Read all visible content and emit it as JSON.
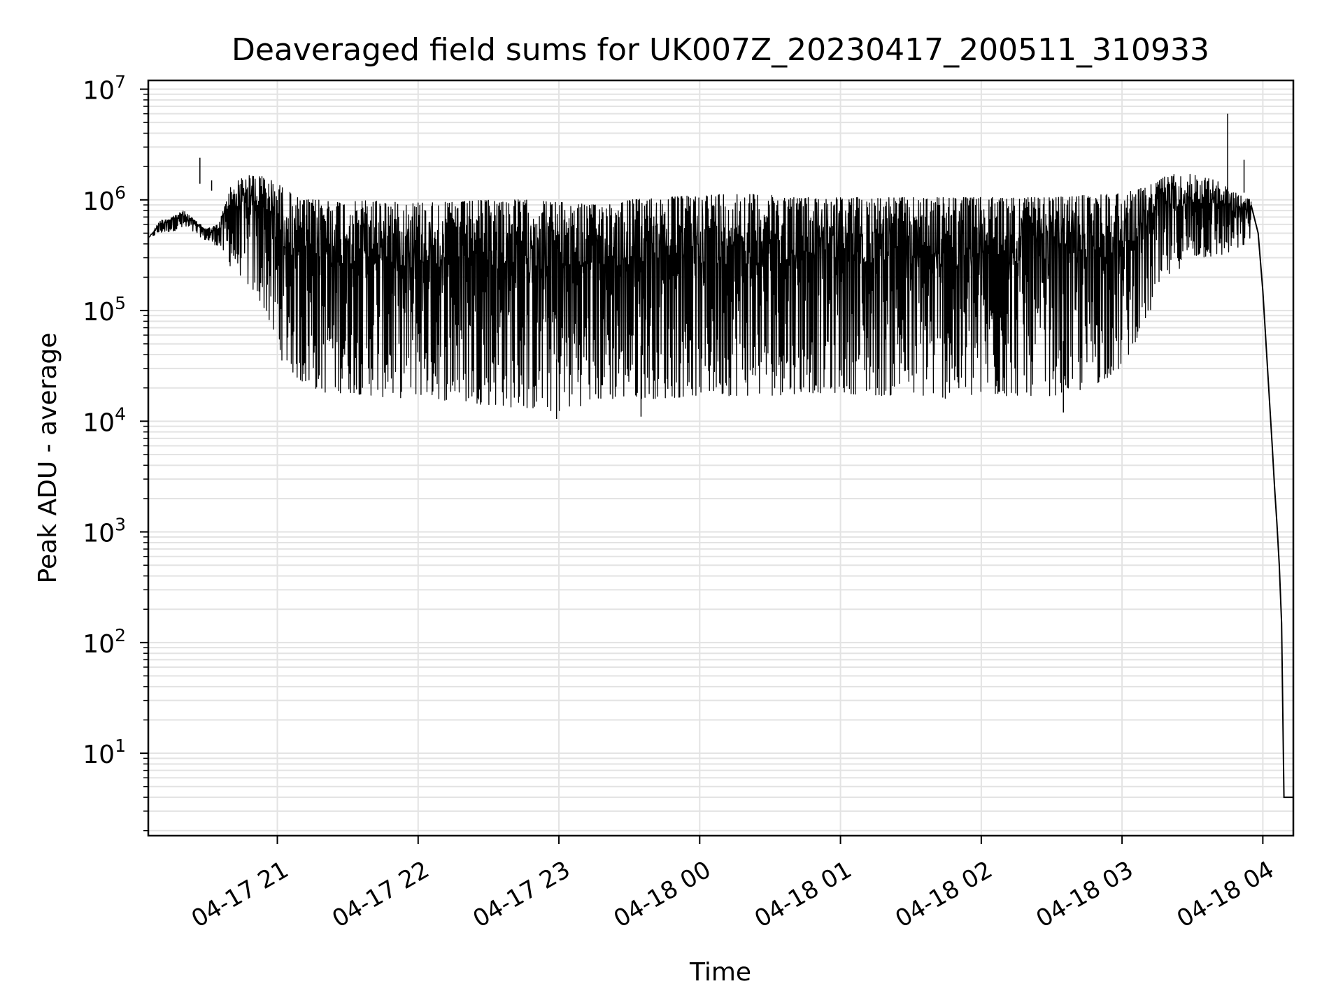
{
  "chart_data": {
    "type": "line",
    "title": "Deaveraged field sums for UK007Z_20230417_200511_310933",
    "xlabel": "Time",
    "ylabel": "Peak ADU - average",
    "yscale": "log",
    "grid": "on",
    "legend": "none",
    "line_color": "#000000",
    "grid_color": "#e3e3e3",
    "xlim": [
      "2023-04-17 20:05",
      "2023-04-18 04:13"
    ],
    "ylim": [
      1.8,
      12000000
    ],
    "x_tick_labels": [
      "04-17 21",
      "04-17 22",
      "04-17 23",
      "04-18 00",
      "04-18 01",
      "04-18 02",
      "04-18 03",
      "04-18 04"
    ],
    "y_tick_labels": [
      {
        "base": "10",
        "exp": "1",
        "value": 10
      },
      {
        "base": "10",
        "exp": "2",
        "value": 100
      },
      {
        "base": "10",
        "exp": "3",
        "value": 1000
      },
      {
        "base": "10",
        "exp": "4",
        "value": 10000
      },
      {
        "base": "10",
        "exp": "5",
        "value": 100000
      },
      {
        "base": "10",
        "exp": "6",
        "value": 1000000
      },
      {
        "base": "10",
        "exp": "7",
        "value": 10000000
      }
    ],
    "series": [
      {
        "envelope": {
          "x": [
            "2023-04-17 20:05",
            "2023-04-17 20:10",
            "2023-04-17 20:15",
            "2023-04-17 20:20",
            "2023-04-17 20:25",
            "2023-04-17 20:30",
            "2023-04-17 20:35",
            "2023-04-17 20:40",
            "2023-04-17 20:45",
            "2023-04-17 20:50",
            "2023-04-17 20:55",
            "2023-04-17 21:00",
            "2023-04-17 21:10",
            "2023-04-17 21:20",
            "2023-04-17 21:30",
            "2023-04-17 21:40",
            "2023-04-17 21:50",
            "2023-04-17 22:00",
            "2023-04-17 22:15",
            "2023-04-17 22:30",
            "2023-04-17 22:45",
            "2023-04-17 23:00",
            "2023-04-17 23:15",
            "2023-04-17 23:30",
            "2023-04-17 23:45",
            "2023-04-18 00:00",
            "2023-04-18 00:15",
            "2023-04-18 00:30",
            "2023-04-18 00:45",
            "2023-04-18 01:00",
            "2023-04-18 01:15",
            "2023-04-18 01:30",
            "2023-04-18 01:45",
            "2023-04-18 02:00",
            "2023-04-18 02:15",
            "2023-04-18 02:30",
            "2023-04-18 02:45",
            "2023-04-18 03:00",
            "2023-04-18 03:10",
            "2023-04-18 03:20",
            "2023-04-18 03:30",
            "2023-04-18 03:40",
            "2023-04-18 03:50",
            "2023-04-18 03:55"
          ],
          "high": [
            450000,
            650000,
            700000,
            800000,
            650000,
            550000,
            600000,
            1300000,
            1600000,
            1700000,
            1600000,
            1400000,
            1000000,
            1000000,
            950000,
            1000000,
            950000,
            950000,
            950000,
            1000000,
            1000000,
            950000,
            900000,
            1000000,
            1050000,
            1100000,
            1150000,
            1100000,
            1050000,
            1050000,
            1050000,
            1050000,
            1050000,
            1050000,
            1050000,
            1050000,
            1100000,
            1150000,
            1300000,
            1700000,
            1700000,
            1500000,
            1100000,
            1000000
          ],
          "low": [
            450000,
            500000,
            520000,
            550000,
            500000,
            420000,
            380000,
            250000,
            200000,
            140000,
            100000,
            40000,
            22000,
            18000,
            18000,
            17000,
            16000,
            17000,
            15000,
            14000,
            13000,
            12000,
            15000,
            16000,
            16000,
            17000,
            17000,
            17000,
            18000,
            18000,
            17000,
            17000,
            16000,
            16000,
            17000,
            17000,
            19000,
            30000,
            80000,
            200000,
            300000,
            300000,
            350000,
            450000
          ]
        },
        "spikes": [
          {
            "t": "2023-04-17 20:27",
            "y": 2400000
          },
          {
            "t": "2023-04-17 20:32",
            "y": 1500000
          },
          {
            "t": "2023-04-17 23:35",
            "y": 11000
          },
          {
            "t": "2023-04-17 22:59",
            "y": 10500
          },
          {
            "t": "2023-04-18 02:35",
            "y": 12000
          },
          {
            "t": "2023-04-18 03:45",
            "y": 6000000
          },
          {
            "t": "2023-04-18 03:52",
            "y": 2300000
          }
        ],
        "tail": {
          "x": [
            "2023-04-18 03:55",
            "2023-04-18 03:58",
            "2023-04-18 04:00",
            "2023-04-18 04:02",
            "2023-04-18 04:04",
            "2023-04-18 04:05",
            "2023-04-18 04:06",
            "2023-04-18 04:07",
            "2023-04-18 04:08",
            "2023-04-18 04:09",
            "2023-04-18 04:10",
            "2023-04-18 04:11",
            "2023-04-18 04:13"
          ],
          "y": [
            900000,
            500000,
            150000,
            30000,
            6000,
            2500,
            1200,
            500,
            150,
            4,
            4,
            4,
            4
          ]
        }
      }
    ]
  }
}
